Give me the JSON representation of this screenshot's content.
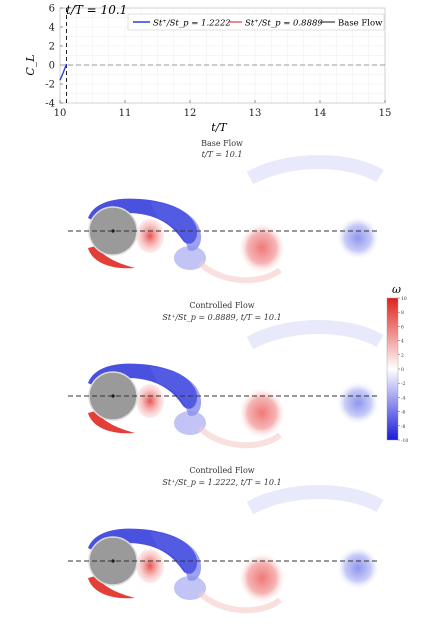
{
  "chart_data": [
    {
      "type": "line",
      "annotation": "t/T = 10.1",
      "xlabel": "t/T",
      "ylabel": "C_L",
      "xlim": [
        10,
        15
      ],
      "ylim": [
        -4,
        6
      ],
      "xticks": [
        10,
        11,
        12,
        13,
        14,
        15
      ],
      "yticks": [
        -4,
        -2,
        0,
        2,
        4,
        6
      ],
      "grid": true,
      "reference_line": {
        "y": 0,
        "style": "dashed"
      },
      "current_time_marker": {
        "x": 10.1,
        "style": "dashed"
      },
      "legend": {
        "placement": "top",
        "entries": [
          {
            "name": "St⁺/St_p = 1.2222",
            "color": "#2b3fd6"
          },
          {
            "name": "St⁺/St_p = 0.8889",
            "color": "#e05858"
          },
          {
            "name": "Base Flow",
            "color": "#555555"
          }
        ]
      },
      "series": [
        {
          "name": "St⁺/St_p = 1.2222",
          "color": "#2b3fd6",
          "x": [
            10.0,
            10.05,
            10.1
          ],
          "y": [
            -1.6,
            -0.8,
            0.1
          ]
        }
      ]
    }
  ],
  "panels": [
    {
      "title_line1": "Base Flow",
      "title_line2": "t/T = 10.1"
    },
    {
      "title_line1": "Controlled Flow",
      "title_line2": "St⁺/St_p = 0.8889, t/T = 10.1"
    },
    {
      "title_line1": "Controlled Flow",
      "title_line2": "St⁺/St_p = 1.2222, t/T = 10.1"
    }
  ],
  "colorbar": {
    "label": "ω",
    "min": -10,
    "max": 10,
    "ticks": [
      10,
      8,
      6,
      4,
      2,
      0,
      -2,
      -4,
      -6,
      -8,
      -10
    ],
    "colors": {
      "positive": "#e0211c",
      "zero": "#ffffff",
      "negative": "#1a1adb"
    }
  }
}
